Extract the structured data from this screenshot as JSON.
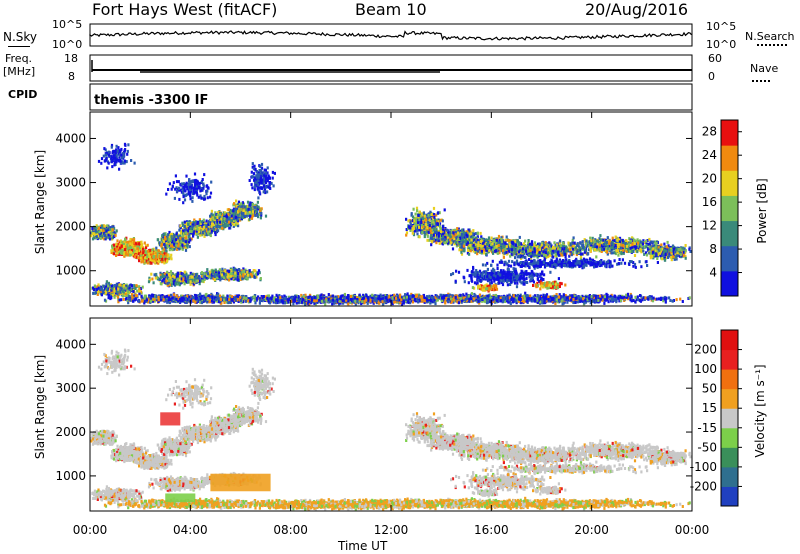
{
  "header": {
    "station": "Fort Hays West (fitACF)",
    "beam": "Beam 10",
    "date": "20/Aug/2016"
  },
  "info_panels": {
    "nsky_label": "N.Sky",
    "freq_label_1": "Freq.",
    "freq_label_2": "[MHz]",
    "cpid_label": "CPID",
    "nsearch_label": "N.Search",
    "nave_label": "Nave",
    "nsky_ticks": [
      "10^5",
      "10^0"
    ],
    "nsearch_ticks": [
      "10^5",
      "10^0"
    ],
    "freq_ticks": [
      "18",
      "8"
    ],
    "nave_ticks": [
      "60",
      "0"
    ],
    "cpid_text": "themis -3300 IF"
  },
  "chart_data": [
    {
      "type": "heatmap",
      "title": "",
      "xlabel": "Time UT",
      "ylabel": "Slant Range [km]",
      "x_ticks": [
        "00:00",
        "04:00",
        "08:00",
        "12:00",
        "16:00",
        "20:00",
        "00:00"
      ],
      "xlim_hours": [
        0,
        24
      ],
      "y_ticks": [
        1000,
        2000,
        3000,
        4000
      ],
      "ylim": [
        200,
        4600
      ],
      "colorbar": {
        "label": "Power [dB]",
        "ticks": [
          4,
          8,
          12,
          16,
          20,
          24,
          28
        ],
        "range": [
          0,
          30
        ],
        "colors": [
          "#1010e0",
          "#2c5cb0",
          "#3a8a7a",
          "#7cbf5a",
          "#e8d020",
          "#f08a10",
          "#e81010"
        ]
      }
    },
    {
      "type": "heatmap",
      "title": "",
      "xlabel": "Time UT",
      "ylabel": "Slant Range [km]",
      "x_ticks": [
        "00:00",
        "04:00",
        "08:00",
        "12:00",
        "16:00",
        "20:00",
        "00:00"
      ],
      "xlim_hours": [
        0,
        24
      ],
      "y_ticks": [
        1000,
        2000,
        3000,
        4000
      ],
      "ylim": [
        200,
        4600
      ],
      "colorbar": {
        "label": "Velocity [m s⁻¹]",
        "ticks": [
          200,
          100,
          50,
          15,
          -15,
          -50,
          -100,
          -200
        ],
        "colors": [
          "#2040c0",
          "#2f6f8f",
          "#3a8f5a",
          "#7ccf4a",
          "#c8c8c8",
          "#f0a020",
          "#f07010",
          "#e82020",
          "#e01010"
        ]
      }
    }
  ],
  "colors": {
    "ground_scatter": "#c0c0c0",
    "axis": "#000000"
  }
}
